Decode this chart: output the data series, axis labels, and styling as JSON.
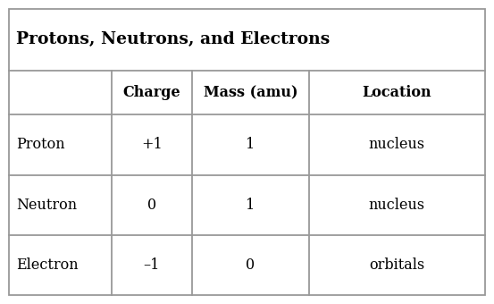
{
  "title": "Protons, Neutrons, and Electrons",
  "headers": [
    "",
    "Charge",
    "Mass (amu)",
    "Location"
  ],
  "rows": [
    [
      "Proton",
      "+1",
      "1",
      "nucleus"
    ],
    [
      "Neutron",
      "0",
      "1",
      "nucleus"
    ],
    [
      "Electron",
      "–1",
      "0",
      "orbitals"
    ]
  ],
  "background_color": "#ffffff",
  "border_color": "#999999",
  "text_color": "#000000",
  "title_fontsize": 13.5,
  "header_fontsize": 11.5,
  "data_fontsize": 11.5,
  "fig_width": 5.53,
  "fig_height": 3.4,
  "dpi": 100
}
